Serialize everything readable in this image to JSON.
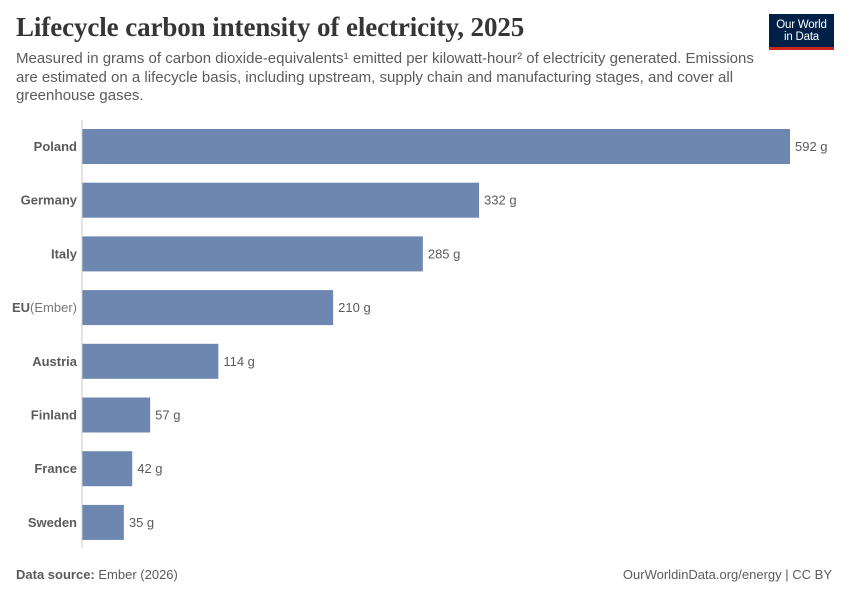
{
  "header": {
    "title": "Lifecycle carbon intensity of electricity, 2025",
    "subtitle": "Measured in grams of carbon dioxide-equivalents¹ emitted per kilowatt-hour² of electricity generated. Emissions are estimated on a lifecycle basis, including upstream, supply chain and manufacturing stages, and cover all greenhouse gases."
  },
  "logo": {
    "line1": "Our World",
    "line2": "in Data"
  },
  "footer": {
    "source_label": "Data source:",
    "source_value": "Ember (2026)",
    "link": "OurWorldinData.org/energy",
    "separator": " | ",
    "license": "CC BY"
  },
  "colors": {
    "bar": "#6d87b1",
    "axis": "#c8c8c8",
    "label": "#5b5b5b",
    "title": "#363636"
  },
  "chart_data": {
    "type": "bar",
    "orientation": "horizontal",
    "unit": "g",
    "categories": [
      "Poland",
      "Germany",
      "Italy",
      "EU",
      "Austria",
      "Finland",
      "France",
      "Sweden"
    ],
    "category_suffixes": [
      "",
      "",
      "",
      "(Ember)",
      "",
      "",
      "",
      ""
    ],
    "values": [
      592,
      332,
      285,
      210,
      114,
      57,
      42,
      35
    ],
    "value_labels": [
      "592 g",
      "332 g",
      "285 g",
      "210 g",
      "114 g",
      "57 g",
      "42 g",
      "35 g"
    ],
    "xlim": [
      0,
      592
    ],
    "grid": false,
    "legend": "none"
  }
}
